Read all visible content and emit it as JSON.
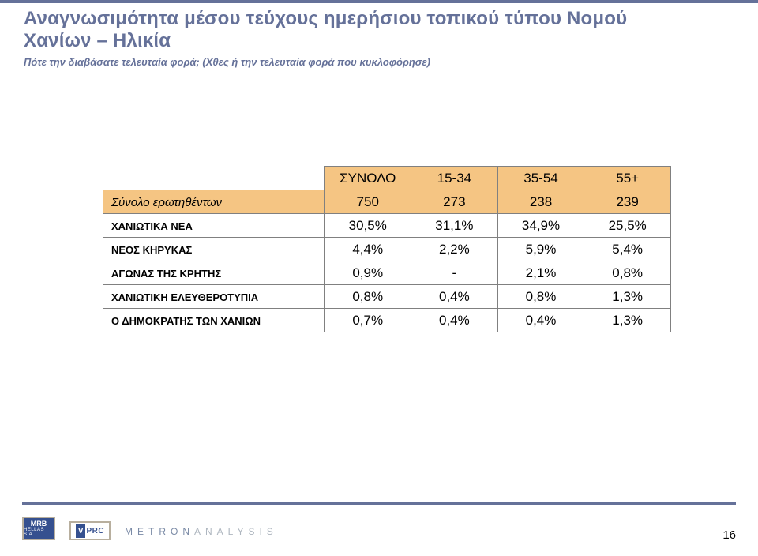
{
  "header": {
    "title_line1": "Αναγνωσιμότητα μέσου τεύχους ημερήσιου τοπικού τύπου Νομού",
    "title_line2": "Χανίων – Ηλικία",
    "subtitle": "Πότε την διαβάσατε τελευταία φορά; (Χθες ή την τελευταία φορά που κυκλοφόρησε)"
  },
  "table": {
    "type": "table",
    "header_bg": "#f5c583",
    "border_color": "#808080",
    "columns": [
      "",
      "ΣΥΝΟΛΟ",
      "15-34",
      "35-54",
      "55+"
    ],
    "rows": [
      {
        "label": "Σύνολο ερωτηθέντων",
        "values": [
          "750",
          "273",
          "238",
          "239"
        ],
        "highlight": true,
        "italic_label": true
      },
      {
        "label": "ΧΑΝΙΩΤΙΚΑ ΝΕΑ",
        "values": [
          "30,5%",
          "31,1%",
          "34,9%",
          "25,5%"
        ]
      },
      {
        "label": "ΝΕΟΣ ΚΗΡΥΚΑΣ",
        "values": [
          "4,4%",
          "2,2%",
          "5,9%",
          "5,4%"
        ]
      },
      {
        "label": "ΑΓΩΝΑΣ ΤΗΣ ΚΡΗΤΗΣ",
        "values": [
          "0,9%",
          "-",
          "2,1%",
          "0,8%"
        ]
      },
      {
        "label": "ΧΑΝΙΩΤΙΚΗ ΕΛΕΥΘΕΡΟΤΥΠΙΑ",
        "values": [
          "0,8%",
          "0,4%",
          "0,8%",
          "1,3%"
        ]
      },
      {
        "label": "Ο ΔΗΜΟΚΡΑΤΗΣ ΤΩΝ ΧΑΝΙΩΝ",
        "values": [
          "0,7%",
          "0,4%",
          "0,4%",
          "1,3%"
        ]
      }
    ]
  },
  "footer": {
    "logos": {
      "mrb": {
        "main": "MRB",
        "sub": "HELLAS S.A."
      },
      "vprc": {
        "v": "V",
        "rest": "PRC"
      },
      "metron": {
        "left": "METRON",
        "right": "ANALYSIS"
      }
    },
    "page_number": "16"
  },
  "colors": {
    "brand_blue": "#657199",
    "header_fill": "#f5c583",
    "logo_blue": "#35508f",
    "logo_border": "#b8af9e"
  }
}
